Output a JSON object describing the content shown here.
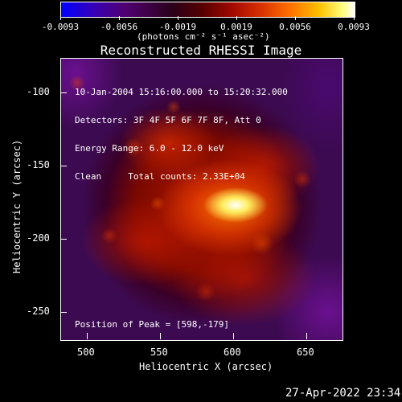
{
  "title": "Reconstructed RHESSI Image",
  "colorbar": {
    "ticks": [
      "-0.0093",
      "-0.0056",
      "-0.0019",
      "0.0019",
      "0.0056",
      "0.0093"
    ],
    "units": "(photons cm⁻² s⁻¹ asec⁻²)",
    "colors": [
      "#0000ff",
      "#5a0090",
      "#2a0020",
      "#600000",
      "#c42000",
      "#ff8000",
      "#ffe000",
      "#ffffff"
    ]
  },
  "info": {
    "line1": "10-Jan-2004 15:16:00.000 to 15:20:32.000",
    "line2": "Detectors: 3F 4F 5F 6F 7F 8F, Att 0",
    "line3": "Energy Range: 6.0 - 12.0 keV",
    "line4": "Clean     Total counts: 2.33E+04",
    "peak": "Position of Peak = [598,-179]"
  },
  "axes": {
    "xlabel": "Heliocentric X (arcsec)",
    "ylabel": "Heliocentric Y (arcsec)",
    "xticks": [
      "500",
      "550",
      "600",
      "650"
    ],
    "yticks": [
      "-100",
      "-150",
      "-200",
      "-250"
    ]
  },
  "footer": {
    "timestamp": "27-Apr-2022 23:34"
  }
}
